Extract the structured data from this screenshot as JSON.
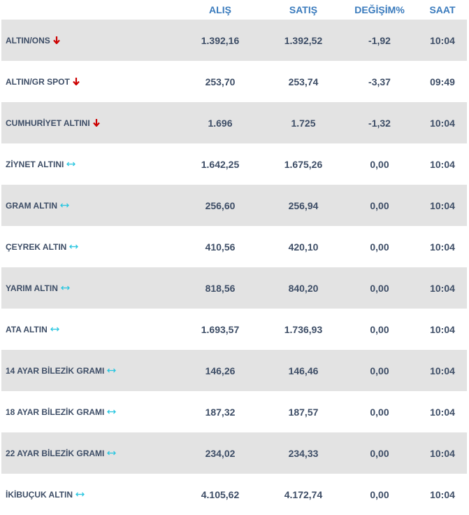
{
  "header": {
    "name": "",
    "buy": "ALIŞ",
    "sell": "SATIŞ",
    "change": "DEĞİŞİM%",
    "time": "SAAT"
  },
  "colors": {
    "down": "#cc0000",
    "flat": "#29c6e0",
    "row_shade": "#e3e3e3",
    "header_text": "#3a7bbd",
    "row_text": "#3d4d66"
  },
  "rows": [
    {
      "name": "ALTIN/ONS",
      "trend": "down-arrow-icon",
      "buy": "1.392,16",
      "sell": "1.392,52",
      "change": "-1,92",
      "time": "10:04"
    },
    {
      "name": "ALTIN/GR SPOT",
      "trend": "down-arrow-icon",
      "buy": "253,70",
      "sell": "253,74",
      "change": "-3,37",
      "time": "09:49"
    },
    {
      "name": "CUMHURİYET ALTINI",
      "trend": "down-arrow-icon",
      "buy": "1.696",
      "sell": "1.725",
      "change": "-1,32",
      "time": "10:04"
    },
    {
      "name": "ZİYNET ALTINI",
      "trend": "flat-arrow-icon",
      "buy": "1.642,25",
      "sell": "1.675,26",
      "change": "0,00",
      "time": "10:04"
    },
    {
      "name": "GRAM ALTIN",
      "trend": "flat-arrow-icon",
      "buy": "256,60",
      "sell": "256,94",
      "change": "0,00",
      "time": "10:04"
    },
    {
      "name": "ÇEYREK ALTIN",
      "trend": "flat-arrow-icon",
      "buy": "410,56",
      "sell": "420,10",
      "change": "0,00",
      "time": "10:04"
    },
    {
      "name": "YARIM ALTIN",
      "trend": "flat-arrow-icon",
      "buy": "818,56",
      "sell": "840,20",
      "change": "0,00",
      "time": "10:04"
    },
    {
      "name": "ATA ALTIN",
      "trend": "flat-arrow-icon",
      "buy": "1.693,57",
      "sell": "1.736,93",
      "change": "0,00",
      "time": "10:04"
    },
    {
      "name": "14 AYAR BİLEZİK GRAMI",
      "trend": "flat-arrow-icon",
      "buy": "146,26",
      "sell": "146,46",
      "change": "0,00",
      "time": "10:04"
    },
    {
      "name": "18 AYAR BİLEZİK GRAMI",
      "trend": "flat-arrow-icon",
      "buy": "187,32",
      "sell": "187,57",
      "change": "0,00",
      "time": "10:04"
    },
    {
      "name": "22 AYAR BİLEZİK GRAMI",
      "trend": "flat-arrow-icon",
      "buy": "234,02",
      "sell": "234,33",
      "change": "0,00",
      "time": "10:04"
    },
    {
      "name": "İKİBUÇUK ALTIN",
      "trend": "flat-arrow-icon",
      "buy": "4.105,62",
      "sell": "4.172,74",
      "change": "0,00",
      "time": "10:04"
    }
  ]
}
